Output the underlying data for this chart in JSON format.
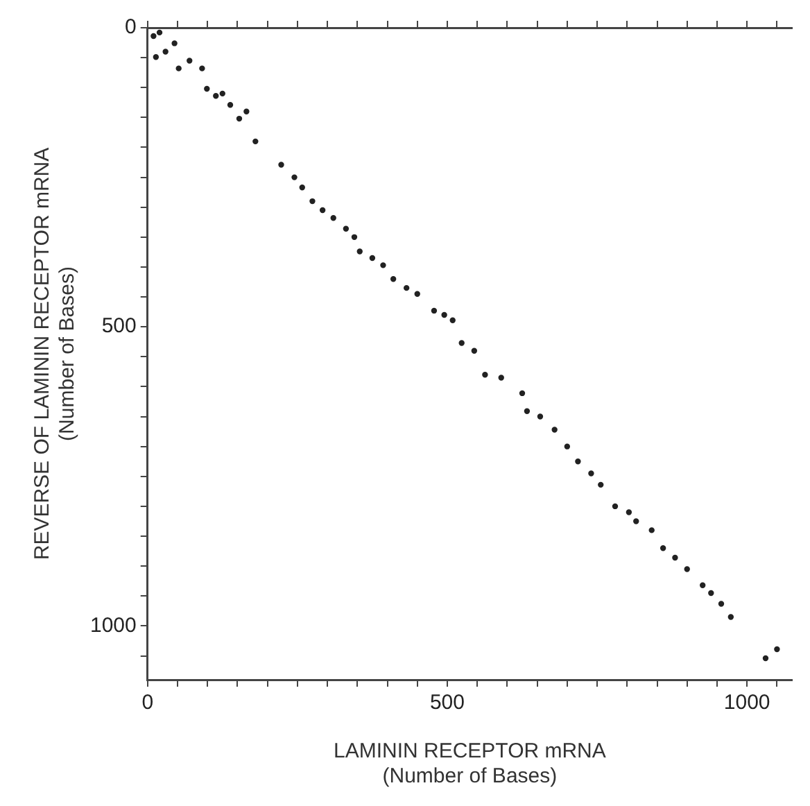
{
  "chart_data": {
    "type": "scatter",
    "xlabel": "LAMININ RECEPTOR mRNA\n(Number of Bases)",
    "ylabel": "REVERSE OF LAMININ RECEPTOR mRNA\n(Number of Bases)",
    "xlim": [
      0,
      1075
    ],
    "ylim": [
      1090,
      0
    ],
    "xticks": [
      0,
      {
        "value": 50,
        "label": null
      },
      {
        "value": 100,
        "label": null
      },
      {
        "value": 150,
        "label": null
      },
      {
        "value": 200,
        "label": null
      },
      {
        "value": 250,
        "label": null
      },
      {
        "value": 300,
        "label": null
      },
      {
        "value": 350,
        "label": null
      },
      {
        "value": 400,
        "label": null
      },
      {
        "value": 450,
        "label": null
      },
      500,
      {
        "value": 550,
        "label": null
      },
      {
        "value": 600,
        "label": null
      },
      {
        "value": 650,
        "label": null
      },
      {
        "value": 700,
        "label": null
      },
      {
        "value": 750,
        "label": null
      },
      {
        "value": 800,
        "label": null
      },
      {
        "value": 850,
        "label": null
      },
      {
        "value": 900,
        "label": null
      },
      {
        "value": 950,
        "label": null
      },
      1000,
      {
        "value": 1050,
        "label": null
      }
    ],
    "yticks": [
      0,
      {
        "value": 50,
        "label": null
      },
      {
        "value": 100,
        "label": null
      },
      {
        "value": 150,
        "label": null
      },
      {
        "value": 200,
        "label": null
      },
      {
        "value": 250,
        "label": null
      },
      {
        "value": 300,
        "label": null
      },
      {
        "value": 350,
        "label": null
      },
      {
        "value": 400,
        "label": null
      },
      {
        "value": 450,
        "label": null
      },
      500,
      {
        "value": 550,
        "label": null
      },
      {
        "value": 600,
        "label": null
      },
      {
        "value": 650,
        "label": null
      },
      {
        "value": 700,
        "label": null
      },
      {
        "value": 750,
        "label": null
      },
      {
        "value": 800,
        "label": null
      },
      {
        "value": 850,
        "label": null
      },
      {
        "value": 900,
        "label": null
      },
      {
        "value": 950,
        "label": null
      },
      1000,
      {
        "value": 1050,
        "label": null
      }
    ],
    "grid": false,
    "legend": false,
    "marker": "circle",
    "series": [
      {
        "color": "#222222",
        "x": [
          10,
          20,
          45,
          14,
          30,
          52,
          70,
          91,
          99,
          114,
          125,
          138,
          153,
          165,
          180,
          223,
          245,
          258,
          275,
          292,
          310,
          331,
          345,
          354,
          375,
          393,
          410,
          432,
          450,
          478,
          495,
          509,
          524,
          545,
          563,
          590,
          625,
          633,
          655,
          679,
          700,
          718,
          740,
          756,
          780,
          803,
          815,
          841,
          860,
          880,
          900,
          926,
          940,
          957,
          973,
          1031,
          1050
        ],
        "values": [
          14,
          8,
          26,
          49,
          40,
          68,
          55,
          68,
          102,
          114,
          110,
          129,
          152,
          140,
          190,
          229,
          250,
          267,
          290,
          305,
          318,
          336,
          350,
          374,
          385,
          397,
          420,
          435,
          445,
          473,
          480,
          489,
          527,
          540,
          580,
          585,
          611,
          641,
          650,
          672,
          700,
          725,
          745,
          764,
          800,
          810,
          825,
          840,
          870,
          886,
          905,
          932,
          945,
          963,
          985,
          1054,
          1039
        ]
      }
    ]
  }
}
